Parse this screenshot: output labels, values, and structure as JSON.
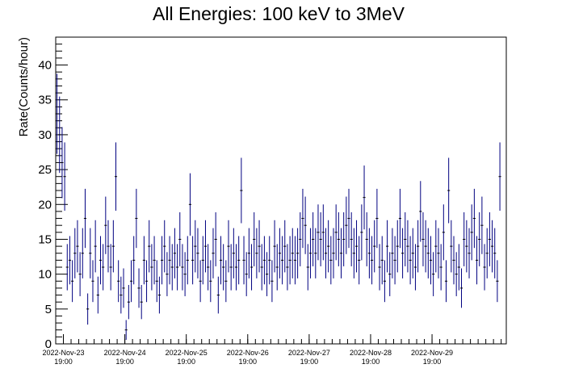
{
  "chart_data": {
    "type": "scatter",
    "title": "All Energies:  100 keV to 3MeV",
    "xlabel": "",
    "ylabel": "Rate(Counts/hour)",
    "ylim": [
      0,
      44
    ],
    "xlim": [
      0,
      176
    ],
    "x_unit": "hour",
    "yticks": [
      "0",
      "5",
      "10",
      "15",
      "20",
      "25",
      "30",
      "35",
      "40"
    ],
    "xtick_labels": [
      {
        "date": "2022-Nov-23",
        "time": "19:00",
        "hour": 3
      },
      {
        "date": "2022-Nov-24",
        "time": "19:00",
        "hour": 27
      },
      {
        "date": "2022-Nov-25",
        "time": "19:00",
        "hour": 51
      },
      {
        "date": "2022-Nov-26",
        "time": "19:00",
        "hour": 75
      },
      {
        "date": "2022-Nov-27",
        "time": "19:00",
        "hour": 99
      },
      {
        "date": "2022-Nov-28",
        "time": "19:00",
        "hour": 123
      },
      {
        "date": "2022-Nov-29",
        "time": "19:00",
        "hour": 147
      }
    ],
    "error_bars": "sqrt(N)",
    "marker_color": "#000080",
    "series": [
      {
        "x_start": 0.5,
        "x_step": 1,
        "values": [
          33,
          30,
          26,
          24,
          11,
          12,
          9,
          13,
          14,
          10,
          13,
          18,
          5,
          13,
          9,
          14,
          7,
          12,
          11,
          17,
          14,
          11,
          14,
          24,
          9,
          7,
          8,
          2,
          6,
          9,
          12,
          18,
          8,
          6,
          12,
          9,
          14,
          11,
          12,
          9,
          7,
          12,
          14,
          10,
          12,
          11,
          13,
          11,
          15,
          11,
          10,
          12,
          20,
          12,
          14,
          13,
          9,
          12,
          14,
          11,
          9,
          13,
          15,
          7,
          12,
          11,
          9,
          14,
          11,
          13,
          11,
          12,
          22,
          12,
          10,
          13,
          11,
          15,
          13,
          14,
          11,
          12,
          10,
          12,
          9,
          14,
          11,
          13,
          12,
          14,
          11,
          12,
          13,
          12,
          13,
          15,
          18,
          17,
          11,
          13,
          15,
          13,
          16,
          15,
          16,
          13,
          14,
          12,
          13,
          16,
          15,
          13,
          15,
          17,
          18,
          15,
          13,
          14,
          12,
          16,
          21,
          15,
          13,
          12,
          14,
          18,
          11,
          12,
          9,
          14,
          10,
          13,
          12,
          14,
          18,
          13,
          15,
          14,
          12,
          13,
          11,
          14,
          19,
          15,
          14,
          13,
          12,
          10,
          14,
          13,
          11,
          16,
          9,
          22,
          14,
          12,
          10,
          11,
          8,
          15,
          14,
          13,
          16,
          18,
          12,
          15,
          17,
          11,
          13,
          15,
          14,
          13,
          9,
          24
        ]
      }
    ]
  }
}
